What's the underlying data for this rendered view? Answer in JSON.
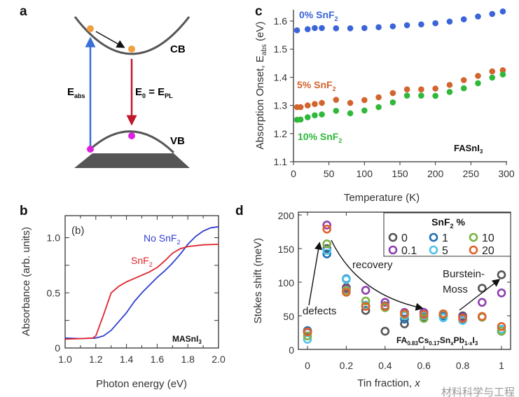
{
  "panel_labels": {
    "a": "a",
    "b": "b",
    "c": "c",
    "d": "d"
  },
  "diagram": {
    "cb_label": "CB",
    "vb_label": "VB",
    "eabs": {
      "main": "E",
      "sub": "abs"
    },
    "e0": {
      "e": "E",
      "sub0": "0",
      "eq": " = E",
      "subpl": "PL"
    },
    "colors": {
      "electron": "#f0a040",
      "hole": "#e020e0",
      "absorption_arrow": "#3a6fd8",
      "emission_arrow": "#c0182a",
      "band": "#555555"
    }
  },
  "chart_data": [
    {
      "id": "b",
      "type": "line",
      "xlabel": "Photon energy (eV)",
      "ylabel": "Absorbance (arb. units)",
      "xlim": [
        1.0,
        2.0
      ],
      "ylim": [
        0,
        1.2
      ],
      "xticks": [
        "1.0",
        "1.2",
        "1.4",
        "1.6",
        "1.8",
        "2.0"
      ],
      "yticks": [
        "0",
        "0.5",
        "1.0"
      ],
      "inset_label": "(b)",
      "sample": {
        "main": "MASnI",
        "sub": "3"
      },
      "series": [
        {
          "name": "No SnF2",
          "label": {
            "main": "No SnF",
            "sub": "2"
          },
          "color": "#2f3fd0",
          "x": [
            1.0,
            1.1,
            1.2,
            1.25,
            1.3,
            1.35,
            1.4,
            1.45,
            1.5,
            1.55,
            1.6,
            1.65,
            1.7,
            1.75,
            1.8,
            1.85,
            1.9,
            1.95,
            2.0
          ],
          "y": [
            0.09,
            0.085,
            0.09,
            0.11,
            0.16,
            0.24,
            0.32,
            0.42,
            0.5,
            0.57,
            0.64,
            0.7,
            0.77,
            0.85,
            0.94,
            1.01,
            1.06,
            1.09,
            1.1
          ]
        },
        {
          "name": "SnF2",
          "label": {
            "main": "SnF",
            "sub": "2"
          },
          "color": "#e0242a",
          "x": [
            1.0,
            1.1,
            1.18,
            1.2,
            1.25,
            1.3,
            1.35,
            1.4,
            1.45,
            1.5,
            1.55,
            1.6,
            1.65,
            1.7,
            1.75,
            1.8,
            1.9,
            2.0
          ],
          "y": [
            0.08,
            0.085,
            0.09,
            0.11,
            0.3,
            0.5,
            0.56,
            0.6,
            0.63,
            0.66,
            0.69,
            0.73,
            0.79,
            0.86,
            0.9,
            0.92,
            0.935,
            0.94
          ]
        }
      ]
    },
    {
      "id": "c",
      "type": "scatter",
      "xlabel": "Temperature (K)",
      "ylabel": {
        "main": "Absorption Onset, E",
        "sub": "abs",
        "unit": " (eV)"
      },
      "xlim": [
        0,
        300
      ],
      "ylim": [
        1.1,
        1.64
      ],
      "xticks": [
        "0",
        "50",
        "100",
        "150",
        "200",
        "250",
        "300"
      ],
      "yticks": [
        "1.1",
        "1.2",
        "1.3",
        "1.4",
        "1.5",
        "1.6"
      ],
      "sample": {
        "main": "FASnI",
        "sub": "3"
      },
      "series": [
        {
          "name": "0% SnF2",
          "label": {
            "main": "0% SnF",
            "sub": "2"
          },
          "color": "#3a64d8",
          "x": [
            5,
            20,
            30,
            40,
            60,
            80,
            100,
            120,
            140,
            160,
            180,
            200,
            220,
            240,
            260,
            280,
            295
          ],
          "y": [
            1.567,
            1.571,
            1.575,
            1.575,
            1.574,
            1.574,
            1.575,
            1.578,
            1.581,
            1.585,
            1.588,
            1.592,
            1.598,
            1.606,
            1.616,
            1.625,
            1.634
          ]
        },
        {
          "name": "5% SnF2",
          "label": {
            "main": "5% SnF",
            "sub": "2"
          },
          "color": "#d2642e",
          "x": [
            5,
            10,
            20,
            30,
            40,
            60,
            80,
            100,
            120,
            140,
            160,
            180,
            200,
            220,
            240,
            260,
            280,
            295
          ],
          "y": [
            1.294,
            1.294,
            1.3,
            1.305,
            1.309,
            1.32,
            1.309,
            1.319,
            1.329,
            1.344,
            1.357,
            1.357,
            1.36,
            1.373,
            1.39,
            1.405,
            1.421,
            1.425
          ]
        },
        {
          "name": "10% SnF2",
          "label": {
            "main": "10% SnF",
            "sub": "2"
          },
          "color": "#2fb83a",
          "x": [
            5,
            10,
            20,
            30,
            40,
            60,
            80,
            100,
            120,
            140,
            160,
            180,
            200,
            220,
            240,
            260,
            280,
            295
          ],
          "y": [
            1.249,
            1.25,
            1.258,
            1.265,
            1.268,
            1.281,
            1.272,
            1.282,
            1.294,
            1.311,
            1.335,
            1.335,
            1.334,
            1.348,
            1.361,
            1.379,
            1.399,
            1.41
          ]
        }
      ]
    },
    {
      "id": "d",
      "type": "scatter",
      "xlabel": {
        "main": "Tin fraction, ",
        "var": "x"
      },
      "ylabel": "Stokes shift (meV)",
      "xlim": [
        0,
        1
      ],
      "ylim": [
        0,
        200
      ],
      "xticks": [
        "0",
        "0.2",
        "0.4",
        "0.6",
        "0.8",
        "1"
      ],
      "yticks": [
        "0",
        "50",
        "100",
        "150",
        "200"
      ],
      "legend": {
        "title": {
          "main": "SnF",
          "sub": "2",
          "rest": " %"
        },
        "placement": "top-right"
      },
      "annotations": {
        "defects": "defects",
        "recovery": "recovery",
        "bm1": "Burstein-",
        "bm2": "Moss"
      },
      "formula": {
        "p1": "FA",
        "s1": "0.83",
        "p2": "Cs",
        "s2": "0.17",
        "p3": "Sn",
        "s3": "x",
        "p4": "Pb",
        "s4": "1-x",
        "p5": "I",
        "s5": "3"
      },
      "x": [
        0,
        0.1,
        0.2,
        0.3,
        0.4,
        0.5,
        0.6,
        0.7,
        0.8,
        0.9,
        1
      ],
      "series": [
        {
          "name": "0",
          "color": "#555555",
          "y": [
            27,
            150,
            92,
            58,
            27,
            38,
            48,
            50,
            50,
            91,
            111
          ]
        },
        {
          "name": "0.1",
          "color": "#8e3fae",
          "y": [
            25,
            185,
            90,
            88,
            70,
            55,
            55,
            52,
            48,
            70,
            84
          ]
        },
        {
          "name": "1",
          "color": "#1f6fb5",
          "y": [
            28,
            142,
            105,
            65,
            65,
            45,
            52,
            50,
            45,
            48,
            27
          ]
        },
        {
          "name": "5",
          "color": "#4fc3ea",
          "y": [
            15,
            147,
            104,
            66,
            64,
            50,
            50,
            47,
            43,
            48,
            30
          ]
        },
        {
          "name": "10",
          "color": "#7cb342",
          "y": [
            20,
            157,
            88,
            72,
            62,
            52,
            46,
            52,
            46,
            48,
            27
          ]
        },
        {
          "name": "20",
          "color": "#e0622a",
          "y": [
            26,
            179,
            85,
            64,
            64,
            53,
            52,
            53,
            46,
            49,
            34
          ]
        }
      ]
    }
  ],
  "watermark": "材料科学与工程"
}
